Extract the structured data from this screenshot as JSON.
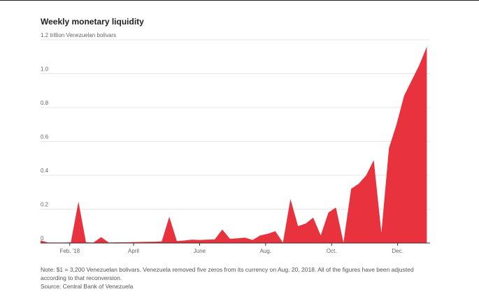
{
  "title": "Weekly monetary liquidity",
  "colors": {
    "area": "#e8333f",
    "grid": "#e6e6e6",
    "axis": "#333333",
    "text": "#666666"
  },
  "footer": {
    "note": "Note: $1 = 3,200 Venezuelan bolivars. Venezuela removed five zeros from its currency on Aug. 20, 2018. All of the figures have been adjusted according to that reconversion.",
    "source": "Source: Central Bank of Venezuela"
  },
  "chart_data": {
    "type": "area",
    "title": "Weekly monetary liquidity",
    "ylabel": "1.2 trillion Venezuelan bolivars",
    "unit_note": "trillion Venezuelan bolivars",
    "ylim": [
      0,
      1.2
    ],
    "yticks": [
      {
        "value": 0,
        "label": "0"
      },
      {
        "value": 0.2,
        "label": "0.2"
      },
      {
        "value": 0.4,
        "label": "0.4"
      },
      {
        "value": 0.6,
        "label": "0.6"
      },
      {
        "value": 0.8,
        "label": "0.8"
      },
      {
        "value": 1.0,
        "label": "1.0"
      },
      {
        "value": 1.2,
        "label": "1.2 trillion Venezuelan bolivars"
      }
    ],
    "xlim": [
      "2018-01-05",
      "2018-12-31"
    ],
    "xticks": [
      {
        "date": "2018-02-01",
        "label": "Feb. '18"
      },
      {
        "date": "2018-04-01",
        "label": "April"
      },
      {
        "date": "2018-06-01",
        "label": "June"
      },
      {
        "date": "2018-08-01",
        "label": "Aug."
      },
      {
        "date": "2018-10-01",
        "label": "Oct."
      },
      {
        "date": "2018-12-01",
        "label": "Dec."
      }
    ],
    "grid": true,
    "series": [
      {
        "x": [
          "2018-01-05",
          "2018-01-12",
          "2018-01-19",
          "2018-01-26",
          "2018-02-02",
          "2018-02-09",
          "2018-02-16",
          "2018-02-23",
          "2018-03-02",
          "2018-03-09",
          "2018-03-16",
          "2018-03-23",
          "2018-03-30",
          "2018-04-06",
          "2018-04-13",
          "2018-04-20",
          "2018-04-27",
          "2018-05-04",
          "2018-05-11",
          "2018-05-18",
          "2018-05-25",
          "2018-06-01",
          "2018-06-08",
          "2018-06-15",
          "2018-06-22",
          "2018-06-29",
          "2018-07-06",
          "2018-07-13",
          "2018-07-20",
          "2018-07-27",
          "2018-08-03",
          "2018-08-10",
          "2018-08-17",
          "2018-08-24",
          "2018-08-31",
          "2018-09-07",
          "2018-09-14",
          "2018-09-21",
          "2018-09-28",
          "2018-10-05",
          "2018-10-12",
          "2018-10-19",
          "2018-10-26",
          "2018-11-02",
          "2018-11-09",
          "2018-11-16",
          "2018-11-23",
          "2018-11-30",
          "2018-12-07",
          "2018-12-14",
          "2018-12-21",
          "2018-12-28"
        ],
        "values": [
          0.015,
          0.003,
          0.003,
          0.003,
          0.004,
          0.245,
          0.004,
          0.003,
          0.035,
          0.003,
          0.004,
          0.004,
          0.005,
          0.006,
          0.007,
          0.008,
          0.01,
          0.155,
          0.012,
          0.015,
          0.02,
          0.018,
          0.02,
          0.022,
          0.08,
          0.025,
          0.028,
          0.032,
          0.018,
          0.045,
          0.055,
          0.07,
          0.003,
          0.26,
          0.1,
          0.115,
          0.15,
          0.045,
          0.18,
          0.21,
          0.003,
          0.32,
          0.35,
          0.4,
          0.49,
          0.06,
          0.56,
          0.7,
          0.87,
          0.96,
          1.05,
          1.16
        ]
      }
    ]
  }
}
